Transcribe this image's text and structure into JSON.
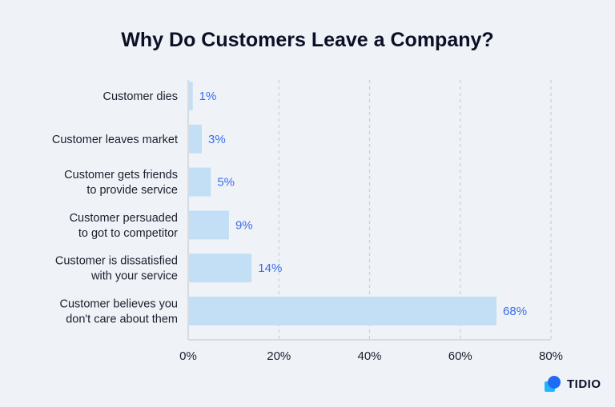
{
  "chart_data": {
    "type": "bar",
    "orientation": "horizontal",
    "title": "Why Do Customers Leave a Company?",
    "categories": [
      [
        "Customer dies"
      ],
      [
        "Customer leaves market"
      ],
      [
        "Customer gets friends",
        "to provide service"
      ],
      [
        "Customer persuaded",
        "to got to competitor"
      ],
      [
        "Customer is dissatisfied",
        "with your service"
      ],
      [
        "Customer believes you",
        "don't care about them"
      ]
    ],
    "values": [
      1,
      3,
      5,
      9,
      14,
      68
    ],
    "value_labels": [
      "1%",
      "3%",
      "5%",
      "9%",
      "14%",
      "68%"
    ],
    "xlim": [
      0,
      80
    ],
    "xticks": [
      0,
      20,
      40,
      60,
      80
    ],
    "xtick_labels": [
      "0%",
      "20%",
      "40%",
      "60%",
      "80%"
    ],
    "grid": "vertical dashed",
    "colors": {
      "bar": "#c2dff5",
      "value_label": "#3b6cf0",
      "background": "#eff3f7"
    }
  },
  "brand": {
    "name": "TIDIO",
    "logo_colors": [
      "#1f6bf5",
      "#1fb6ff"
    ]
  }
}
